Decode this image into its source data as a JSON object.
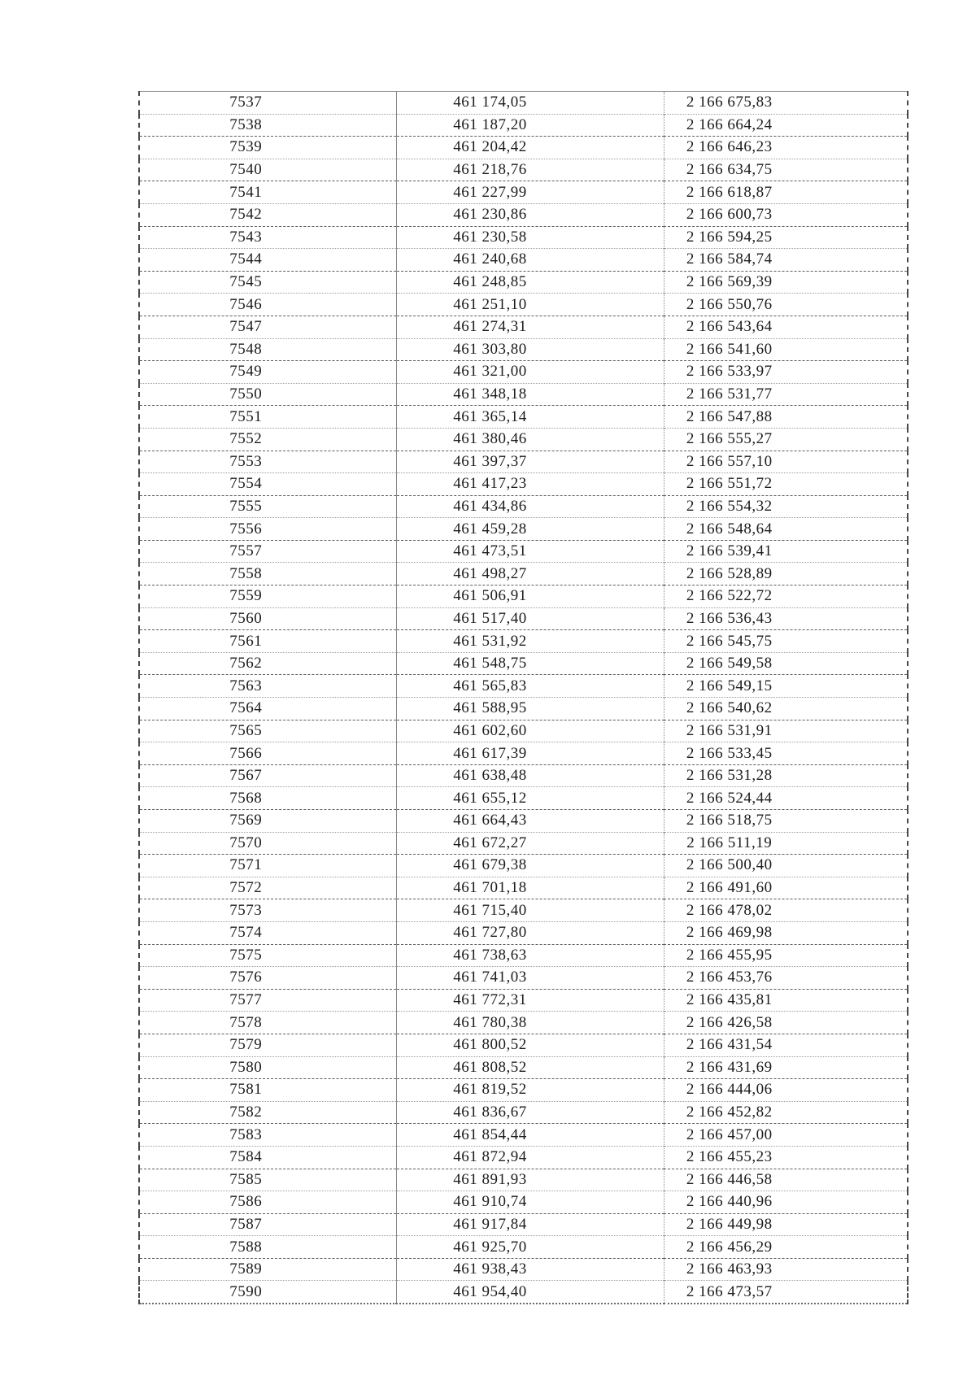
{
  "page": {
    "background_color": "#ffffff",
    "text_color": "#1c1c1c",
    "description": "Scanned document page with a table of surveyed boundary points: point number, X coordinate, Y coordinate"
  },
  "table": {
    "columns": [
      "point_number",
      "x_coordinate",
      "y_coordinate"
    ],
    "rows": [
      {
        "n": "7537",
        "x": "461 174,05",
        "y": "2 166 675,83"
      },
      {
        "n": "7538",
        "x": "461 187,20",
        "y": "2 166 664,24"
      },
      {
        "n": "7539",
        "x": "461 204,42",
        "y": "2 166 646,23"
      },
      {
        "n": "7540",
        "x": "461 218,76",
        "y": "2 166 634,75"
      },
      {
        "n": "7541",
        "x": "461 227,99",
        "y": "2 166 618,87"
      },
      {
        "n": "7542",
        "x": "461 230,86",
        "y": "2 166 600,73"
      },
      {
        "n": "7543",
        "x": "461 230,58",
        "y": "2 166 594,25"
      },
      {
        "n": "7544",
        "x": "461 240,68",
        "y": "2 166 584,74"
      },
      {
        "n": "7545",
        "x": "461 248,85",
        "y": "2 166 569,39"
      },
      {
        "n": "7546",
        "x": "461 251,10",
        "y": "2 166 550,76"
      },
      {
        "n": "7547",
        "x": "461 274,31",
        "y": "2 166 543,64"
      },
      {
        "n": "7548",
        "x": "461 303,80",
        "y": "2 166 541,60"
      },
      {
        "n": "7549",
        "x": "461 321,00",
        "y": "2 166 533,97"
      },
      {
        "n": "7550",
        "x": "461 348,18",
        "y": "2 166 531,77"
      },
      {
        "n": "7551",
        "x": "461 365,14",
        "y": "2 166 547,88"
      },
      {
        "n": "7552",
        "x": "461 380,46",
        "y": "2 166 555,27"
      },
      {
        "n": "7553",
        "x": "461 397,37",
        "y": "2 166 557,10"
      },
      {
        "n": "7554",
        "x": "461 417,23",
        "y": "2 166 551,72"
      },
      {
        "n": "7555",
        "x": "461 434,86",
        "y": "2 166 554,32"
      },
      {
        "n": "7556",
        "x": "461 459,28",
        "y": "2 166 548,64"
      },
      {
        "n": "7557",
        "x": "461 473,51",
        "y": "2 166 539,41"
      },
      {
        "n": "7558",
        "x": "461 498,27",
        "y": "2 166 528,89"
      },
      {
        "n": "7559",
        "x": "461 506,91",
        "y": "2 166 522,72"
      },
      {
        "n": "7560",
        "x": "461 517,40",
        "y": "2 166 536,43"
      },
      {
        "n": "7561",
        "x": "461 531,92",
        "y": "2 166 545,75"
      },
      {
        "n": "7562",
        "x": "461 548,75",
        "y": "2 166 549,58"
      },
      {
        "n": "7563",
        "x": "461 565,83",
        "y": "2 166 549,15"
      },
      {
        "n": "7564",
        "x": "461 588,95",
        "y": "2 166 540,62"
      },
      {
        "n": "7565",
        "x": "461 602,60",
        "y": "2 166 531,91"
      },
      {
        "n": "7566",
        "x": "461 617,39",
        "y": "2 166 533,45"
      },
      {
        "n": "7567",
        "x": "461 638,48",
        "y": "2 166 531,28"
      },
      {
        "n": "7568",
        "x": "461 655,12",
        "y": "2 166 524,44"
      },
      {
        "n": "7569",
        "x": "461 664,43",
        "y": "2 166 518,75"
      },
      {
        "n": "7570",
        "x": "461 672,27",
        "y": "2 166 511,19"
      },
      {
        "n": "7571",
        "x": "461 679,38",
        "y": "2 166 500,40"
      },
      {
        "n": "7572",
        "x": "461 701,18",
        "y": "2 166 491,60"
      },
      {
        "n": "7573",
        "x": "461 715,40",
        "y": "2 166 478,02"
      },
      {
        "n": "7574",
        "x": "461 727,80",
        "y": "2 166 469,98"
      },
      {
        "n": "7575",
        "x": "461 738,63",
        "y": "2 166 455,95"
      },
      {
        "n": "7576",
        "x": "461 741,03",
        "y": "2 166 453,76"
      },
      {
        "n": "7577",
        "x": "461 772,31",
        "y": "2 166 435,81"
      },
      {
        "n": "7578",
        "x": "461 780,38",
        "y": "2 166 426,58"
      },
      {
        "n": "7579",
        "x": "461 800,52",
        "y": "2 166 431,54"
      },
      {
        "n": "7580",
        "x": "461 808,52",
        "y": "2 166 431,69"
      },
      {
        "n": "7581",
        "x": "461 819,52",
        "y": "2 166 444,06"
      },
      {
        "n": "7582",
        "x": "461 836,67",
        "y": "2 166 452,82"
      },
      {
        "n": "7583",
        "x": "461 854,44",
        "y": "2 166 457,00"
      },
      {
        "n": "7584",
        "x": "461 872,94",
        "y": "2 166 455,23"
      },
      {
        "n": "7585",
        "x": "461 891,93",
        "y": "2 166 446,58"
      },
      {
        "n": "7586",
        "x": "461 910,74",
        "y": "2 166 440,96"
      },
      {
        "n": "7587",
        "x": "461 917,84",
        "y": "2 166 449,98"
      },
      {
        "n": "7588",
        "x": "461 925,70",
        "y": "2 166 456,29"
      },
      {
        "n": "7589",
        "x": "461 938,43",
        "y": "2 166 463,93"
      },
      {
        "n": "7590",
        "x": "461 954,40",
        "y": "2 166 473,57"
      }
    ]
  }
}
